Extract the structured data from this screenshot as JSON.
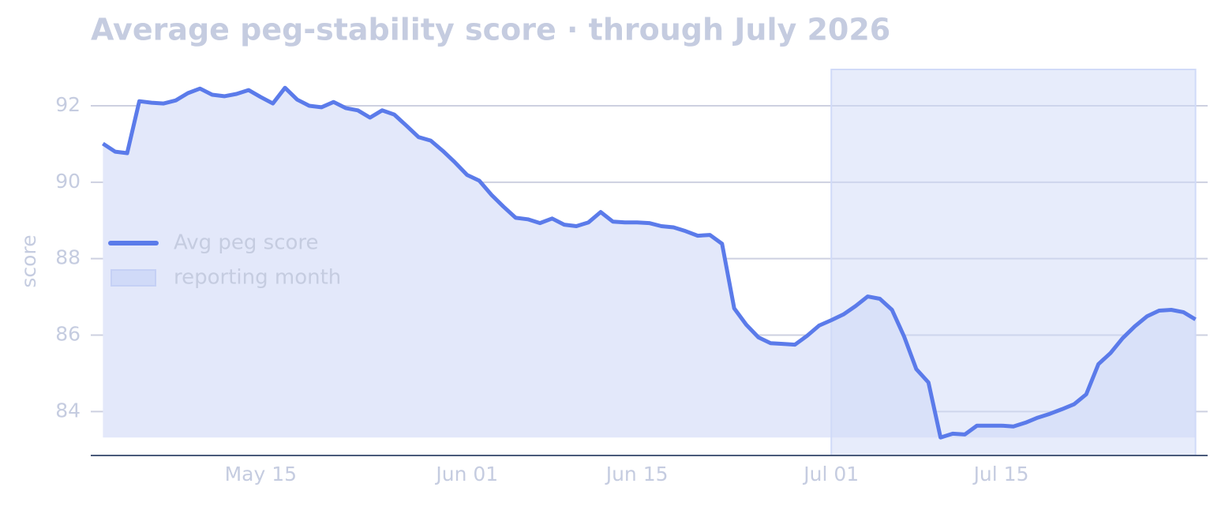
{
  "chart_data": {
    "type": "line",
    "title": "Average peg-stability score · through July 2026",
    "y_label": "score",
    "x": [
      "2026-05-02",
      "2026-05-03",
      "2026-05-04",
      "2026-05-05",
      "2026-05-06",
      "2026-05-07",
      "2026-05-08",
      "2026-05-09",
      "2026-05-10",
      "2026-05-11",
      "2026-05-12",
      "2026-05-13",
      "2026-05-14",
      "2026-05-15",
      "2026-05-16",
      "2026-05-17",
      "2026-05-18",
      "2026-05-19",
      "2026-05-20",
      "2026-05-21",
      "2026-05-22",
      "2026-05-23",
      "2026-05-24",
      "2026-05-25",
      "2026-05-26",
      "2026-05-27",
      "2026-05-28",
      "2026-05-29",
      "2026-05-30",
      "2026-05-31",
      "2026-06-01",
      "2026-06-02",
      "2026-06-03",
      "2026-06-04",
      "2026-06-05",
      "2026-06-06",
      "2026-06-07",
      "2026-06-08",
      "2026-06-09",
      "2026-06-10",
      "2026-06-11",
      "2026-06-12",
      "2026-06-13",
      "2026-06-14",
      "2026-06-15",
      "2026-06-16",
      "2026-06-17",
      "2026-06-18",
      "2026-06-19",
      "2026-06-20",
      "2026-06-21",
      "2026-06-22",
      "2026-06-23",
      "2026-06-24",
      "2026-06-25",
      "2026-06-26",
      "2026-06-27",
      "2026-06-28",
      "2026-06-29",
      "2026-06-30",
      "2026-07-01",
      "2026-07-02",
      "2026-07-03",
      "2026-07-04",
      "2026-07-05",
      "2026-07-06",
      "2026-07-07",
      "2026-07-08",
      "2026-07-09",
      "2026-07-10",
      "2026-07-11",
      "2026-07-12",
      "2026-07-13",
      "2026-07-14",
      "2026-07-15",
      "2026-07-16",
      "2026-07-17",
      "2026-07-18",
      "2026-07-19",
      "2026-07-20",
      "2026-07-21",
      "2026-07-22",
      "2026-07-23",
      "2026-07-24",
      "2026-07-25",
      "2026-07-26",
      "2026-07-27",
      "2026-07-28",
      "2026-07-29",
      "2026-07-30",
      "2026-07-31"
    ],
    "series": [
      {
        "name": "Avg peg score",
        "color": "#5b7bea",
        "fill_color": "#e3e8fa",
        "values": [
          91.01,
          90.8,
          90.76,
          92.12,
          92.08,
          92.06,
          92.14,
          92.33,
          92.45,
          92.29,
          92.25,
          92.31,
          92.41,
          92.23,
          92.06,
          92.47,
          92.16,
          92.0,
          91.96,
          92.1,
          91.94,
          91.88,
          91.69,
          91.88,
          91.77,
          91.48,
          91.18,
          91.09,
          90.82,
          90.52,
          90.19,
          90.04,
          89.67,
          89.36,
          89.07,
          89.03,
          88.93,
          89.05,
          88.89,
          88.85,
          88.95,
          89.22,
          88.97,
          88.95,
          88.95,
          88.93,
          88.85,
          88.82,
          88.72,
          88.6,
          88.62,
          88.39,
          86.7,
          86.27,
          85.94,
          85.79,
          85.77,
          85.75,
          85.98,
          86.25,
          86.39,
          86.54,
          86.76,
          87.01,
          86.95,
          86.66,
          85.96,
          85.11,
          84.76,
          83.32,
          83.42,
          83.4,
          83.63,
          83.63,
          83.63,
          83.61,
          83.71,
          83.84,
          83.94,
          84.06,
          84.19,
          84.45,
          85.24,
          85.53,
          85.92,
          86.23,
          86.49,
          86.64,
          86.66,
          86.6,
          86.41
        ]
      }
    ],
    "shaded_span": {
      "x": [
        "2026-07-01",
        "2026-07-31"
      ],
      "label": "reporting month",
      "color": "#d0daf8"
    },
    "xlim": [
      "2026-05-01",
      "2026-08-01"
    ],
    "xticks": [
      {
        "value": "2026-05-15",
        "label": "May 15"
      },
      {
        "value": "2026-06-01",
        "label": "Jun 01"
      },
      {
        "value": "2026-06-15",
        "label": "Jun 15"
      },
      {
        "value": "2026-07-01",
        "label": "Jul 01"
      },
      {
        "value": "2026-07-15",
        "label": "Jul 15"
      }
    ],
    "ylim": [
      82.85,
      92.95
    ],
    "yticks": [
      84,
      86,
      88,
      90,
      92
    ],
    "grid": true,
    "legend": "center left"
  }
}
